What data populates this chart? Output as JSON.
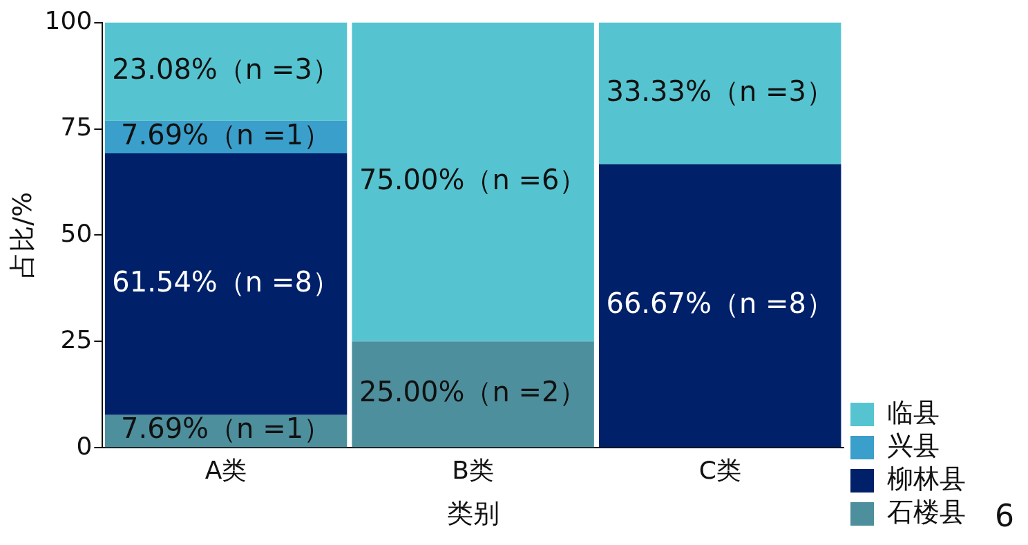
{
  "chart_data": {
    "type": "bar",
    "stacked": true,
    "xlabel": "类别",
    "ylabel": "占比/%",
    "categories": [
      "A类",
      "B类",
      "C类"
    ],
    "series": [
      {
        "name": "石楼县",
        "color": "#4e8f9e",
        "values": [
          7.69,
          25,
          0
        ],
        "value_labels": [
          "7.69%（n =1）",
          "25.00%（n =2）",
          null
        ]
      },
      {
        "name": "柳林县",
        "color": "#00206a",
        "values": [
          61.54,
          0,
          66.67
        ],
        "value_labels": [
          "61.54%（n =8）",
          null,
          "66.67%（n =8）"
        ]
      },
      {
        "name": "兴县",
        "color": "#3a9fcb",
        "values": [
          7.69,
          0,
          0
        ],
        "value_labels": [
          "7.69%（n =1）",
          null,
          null
        ]
      },
      {
        "name": "临县",
        "color": "#56c4d0",
        "values": [
          23.08,
          75,
          33.33
        ],
        "value_labels": [
          "23.08%（n =3）",
          "75.00%（n =6）",
          "33.33%（n =3）"
        ]
      }
    ],
    "ylim": [
      0,
      100
    ],
    "yticks": [
      0,
      25,
      50,
      75,
      100
    ],
    "grid": false,
    "legend": "bottom right",
    "annotations": [
      "6"
    ]
  }
}
